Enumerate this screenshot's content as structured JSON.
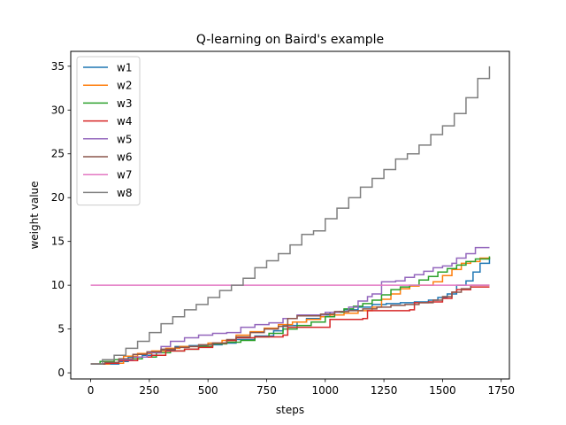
{
  "chart_data": {
    "type": "line",
    "title": "Q-learning on Baird's example",
    "xlabel": "steps",
    "ylabel": "weight value",
    "xlim": [
      -85,
      1785
    ],
    "ylim": [
      -0.7,
      36.7
    ],
    "xticks": [
      0,
      250,
      500,
      750,
      1000,
      1250,
      1500,
      1750
    ],
    "yticks": [
      0,
      5,
      10,
      15,
      20,
      25,
      30,
      35
    ],
    "legend": "upper-left",
    "grid": false,
    "series": [
      {
        "name": "w1",
        "color": "#1f77b4",
        "points": [
          [
            0,
            1
          ],
          [
            120,
            1.3
          ],
          [
            160,
            1.8
          ],
          [
            220,
            2
          ],
          [
            260,
            2.3
          ],
          [
            300,
            2.6
          ],
          [
            360,
            3
          ],
          [
            420,
            3.1
          ],
          [
            500,
            3.2
          ],
          [
            560,
            3.4
          ],
          [
            620,
            3.8
          ],
          [
            700,
            4.2
          ],
          [
            780,
            4.8
          ],
          [
            820,
            5.4
          ],
          [
            880,
            5.8
          ],
          [
            920,
            6.2
          ],
          [
            980,
            6.6
          ],
          [
            1020,
            6.9
          ],
          [
            1080,
            7.2
          ],
          [
            1140,
            7.5
          ],
          [
            1200,
            7.8
          ],
          [
            1260,
            7.9
          ],
          [
            1320,
            8
          ],
          [
            1380,
            8.1
          ],
          [
            1440,
            8.3
          ],
          [
            1480,
            8.6
          ],
          [
            1520,
            9
          ],
          [
            1560,
            10
          ],
          [
            1600,
            10.5
          ],
          [
            1630,
            11.5
          ],
          [
            1660,
            12.5
          ],
          [
            1700,
            13.2
          ]
        ]
      },
      {
        "name": "w2",
        "color": "#ff7f0e",
        "points": [
          [
            0,
            1
          ],
          [
            80,
            1.1
          ],
          [
            140,
            1.9
          ],
          [
            200,
            2.2
          ],
          [
            260,
            2.5
          ],
          [
            320,
            2.8
          ],
          [
            380,
            3
          ],
          [
            440,
            3
          ],
          [
            500,
            3.4
          ],
          [
            560,
            3.7
          ],
          [
            620,
            4.3
          ],
          [
            680,
            4.7
          ],
          [
            740,
            5.1
          ],
          [
            800,
            5.5
          ],
          [
            860,
            5.8
          ],
          [
            920,
            6.1
          ],
          [
            980,
            6.4
          ],
          [
            1020,
            6.6
          ],
          [
            1080,
            6.8
          ],
          [
            1140,
            7.1
          ],
          [
            1200,
            7.5
          ],
          [
            1240,
            8.4
          ],
          [
            1280,
            9
          ],
          [
            1320,
            9.6
          ],
          [
            1360,
            9.9
          ],
          [
            1400,
            10
          ],
          [
            1460,
            10.4
          ],
          [
            1500,
            11.1
          ],
          [
            1540,
            11.8
          ],
          [
            1580,
            12.5
          ],
          [
            1620,
            12.7
          ],
          [
            1660,
            13.1
          ],
          [
            1700,
            13.2
          ]
        ]
      },
      {
        "name": "w3",
        "color": "#2ca02c",
        "points": [
          [
            0,
            1
          ],
          [
            40,
            1.3
          ],
          [
            100,
            1.5
          ],
          [
            160,
            1.6
          ],
          [
            220,
            1.8
          ],
          [
            280,
            2.3
          ],
          [
            340,
            2.5
          ],
          [
            400,
            2.7
          ],
          [
            460,
            3
          ],
          [
            520,
            3.3
          ],
          [
            580,
            3.5
          ],
          [
            640,
            3.7
          ],
          [
            700,
            4.1
          ],
          [
            760,
            4.5
          ],
          [
            820,
            5
          ],
          [
            880,
            5.4
          ],
          [
            940,
            5.8
          ],
          [
            1000,
            6.4
          ],
          [
            1040,
            6.9
          ],
          [
            1080,
            7.3
          ],
          [
            1120,
            7.6
          ],
          [
            1160,
            7.9
          ],
          [
            1200,
            8.3
          ],
          [
            1240,
            8.9
          ],
          [
            1280,
            9.5
          ],
          [
            1320,
            9.8
          ],
          [
            1360,
            10
          ],
          [
            1400,
            10.6
          ],
          [
            1440,
            11
          ],
          [
            1480,
            11.5
          ],
          [
            1520,
            11.9
          ],
          [
            1560,
            12.3
          ],
          [
            1600,
            12.7
          ],
          [
            1640,
            13
          ],
          [
            1700,
            13.3
          ]
        ]
      },
      {
        "name": "w4",
        "color": "#d62728",
        "points": [
          [
            0,
            1
          ],
          [
            60,
            1.1
          ],
          [
            120,
            1.4
          ],
          [
            200,
            1.8
          ],
          [
            260,
            2
          ],
          [
            320,
            2.5
          ],
          [
            400,
            2.7
          ],
          [
            460,
            2.9
          ],
          [
            520,
            3.4
          ],
          [
            580,
            3.7
          ],
          [
            620,
            4
          ],
          [
            700,
            4.1
          ],
          [
            760,
            4.1
          ],
          [
            820,
            4.3
          ],
          [
            840,
            5.2
          ],
          [
            1000,
            5.2
          ],
          [
            1020,
            6.1
          ],
          [
            1160,
            6.2
          ],
          [
            1180,
            7.1
          ],
          [
            1360,
            7.2
          ],
          [
            1380,
            8
          ],
          [
            1440,
            8.1
          ],
          [
            1500,
            8.5
          ],
          [
            1540,
            9.2
          ],
          [
            1560,
            9.5
          ],
          [
            1620,
            9.8
          ],
          [
            1700,
            9.8
          ]
        ]
      },
      {
        "name": "w5",
        "color": "#9467bd",
        "points": [
          [
            0,
            1
          ],
          [
            60,
            1.2
          ],
          [
            120,
            1.5
          ],
          [
            180,
            1.8
          ],
          [
            240,
            2.3
          ],
          [
            300,
            3
          ],
          [
            340,
            3.6
          ],
          [
            400,
            4
          ],
          [
            460,
            4.3
          ],
          [
            520,
            4.5
          ],
          [
            580,
            4.6
          ],
          [
            640,
            5.2
          ],
          [
            700,
            5.5
          ],
          [
            760,
            5.7
          ],
          [
            820,
            6.2
          ],
          [
            880,
            6.6
          ],
          [
            960,
            6.6
          ],
          [
            1000,
            6.9
          ],
          [
            1060,
            7
          ],
          [
            1100,
            7.5
          ],
          [
            1140,
            8.2
          ],
          [
            1180,
            8.7
          ],
          [
            1200,
            9
          ],
          [
            1240,
            10.4
          ],
          [
            1260,
            10.4
          ],
          [
            1300,
            10.5
          ],
          [
            1340,
            10.9
          ],
          [
            1380,
            11.2
          ],
          [
            1420,
            11.6
          ],
          [
            1460,
            12
          ],
          [
            1500,
            12.2
          ],
          [
            1540,
            12.5
          ],
          [
            1560,
            13.1
          ],
          [
            1600,
            13.6
          ],
          [
            1640,
            14.3
          ],
          [
            1700,
            14.3
          ]
        ]
      },
      {
        "name": "w6",
        "color": "#8c564b",
        "points": [
          [
            0,
            1
          ],
          [
            60,
            1.2
          ],
          [
            120,
            1.6
          ],
          [
            180,
            2.1
          ],
          [
            240,
            2.4
          ],
          [
            300,
            2.7
          ],
          [
            360,
            2.9
          ],
          [
            420,
            3
          ],
          [
            460,
            3.2
          ],
          [
            520,
            3.4
          ],
          [
            580,
            3.8
          ],
          [
            620,
            4.1
          ],
          [
            680,
            4.6
          ],
          [
            740,
            5
          ],
          [
            800,
            5.3
          ],
          [
            840,
            6.2
          ],
          [
            880,
            6.5
          ],
          [
            940,
            6.5
          ],
          [
            980,
            6.7
          ],
          [
            1040,
            7
          ],
          [
            1100,
            7.1
          ],
          [
            1160,
            7.3
          ],
          [
            1220,
            7.5
          ],
          [
            1280,
            7.7
          ],
          [
            1340,
            7.8
          ],
          [
            1400,
            8
          ],
          [
            1460,
            8.3
          ],
          [
            1500,
            8.7
          ],
          [
            1540,
            9.2
          ],
          [
            1580,
            9.6
          ],
          [
            1620,
            10
          ],
          [
            1700,
            10
          ]
        ]
      },
      {
        "name": "w7",
        "color": "#e377c2",
        "points": [
          [
            0,
            10
          ],
          [
            1700,
            10
          ]
        ]
      },
      {
        "name": "w8",
        "color": "#7f7f7f",
        "points": [
          [
            0,
            1
          ],
          [
            50,
            1.5
          ],
          [
            100,
            2
          ],
          [
            150,
            2.8
          ],
          [
            200,
            3.6
          ],
          [
            250,
            4.6
          ],
          [
            300,
            5.6
          ],
          [
            350,
            6.4
          ],
          [
            400,
            7.2
          ],
          [
            450,
            7.8
          ],
          [
            500,
            8.6
          ],
          [
            550,
            9.4
          ],
          [
            600,
            10
          ],
          [
            650,
            10.8
          ],
          [
            700,
            12
          ],
          [
            750,
            12.8
          ],
          [
            800,
            13.6
          ],
          [
            850,
            14.6
          ],
          [
            900,
            15.8
          ],
          [
            950,
            16.2
          ],
          [
            1000,
            17.6
          ],
          [
            1050,
            18.8
          ],
          [
            1100,
            20
          ],
          [
            1150,
            21.2
          ],
          [
            1200,
            22.2
          ],
          [
            1250,
            23.2
          ],
          [
            1300,
            24.4
          ],
          [
            1350,
            25
          ],
          [
            1400,
            26
          ],
          [
            1450,
            27.2
          ],
          [
            1500,
            28.2
          ],
          [
            1550,
            29.6
          ],
          [
            1600,
            31.4
          ],
          [
            1650,
            33.6
          ],
          [
            1700,
            35
          ]
        ]
      }
    ]
  }
}
